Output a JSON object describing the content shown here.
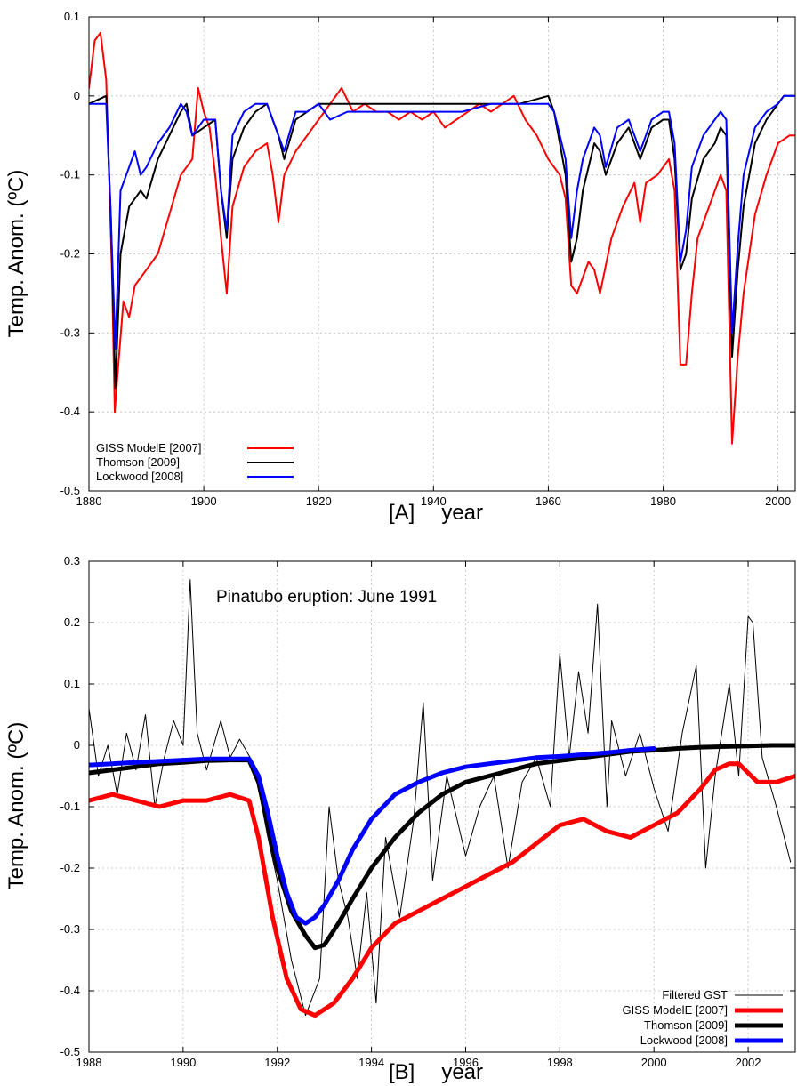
{
  "chart_data": [
    {
      "type": "line",
      "panel_label": "[A]",
      "xlabel": "year",
      "ylabel": "Temp. Anom. (ºC)",
      "xlim": [
        1880,
        2003
      ],
      "ylim": [
        -0.5,
        0.1
      ],
      "xticks": [
        "1880",
        "1900",
        "1920",
        "1940",
        "1960",
        "1980",
        "2000"
      ],
      "yticks": [
        "0.1",
        "0",
        "-0.1",
        "-0.2",
        "-0.3",
        "-0.4",
        "-0.5"
      ],
      "legend_position": "bottom-left",
      "series": [
        {
          "name": "GISS ModelE [2007]",
          "color": "#ff0000",
          "x": [
            1880,
            1881,
            1882,
            1883,
            1884,
            1884.5,
            1885,
            1886,
            1887,
            1888,
            1890,
            1892,
            1894,
            1896,
            1898,
            1899,
            1900,
            1901,
            1902,
            1903,
            1904,
            1905,
            1907,
            1909,
            1911,
            1912,
            1913,
            1914,
            1916,
            1918,
            1920,
            1922,
            1924,
            1926,
            1928,
            1930,
            1932,
            1934,
            1936,
            1938,
            1940,
            1942,
            1944,
            1946,
            1948,
            1950,
            1952,
            1954,
            1956,
            1958,
            1960,
            1962,
            1963,
            1964,
            1965,
            1967,
            1968,
            1969,
            1971,
            1973,
            1975,
            1976,
            1977,
            1979,
            1981,
            1982,
            1983,
            1984,
            1985,
            1986,
            1988,
            1990,
            1991,
            1992,
            1993,
            1994,
            1996,
            1998,
            2000,
            2002,
            2003
          ],
          "y": [
            0.01,
            0.07,
            0.08,
            0.02,
            -0.22,
            -0.4,
            -0.35,
            -0.26,
            -0.28,
            -0.24,
            -0.22,
            -0.2,
            -0.15,
            -0.1,
            -0.08,
            0.01,
            -0.02,
            -0.04,
            -0.1,
            -0.18,
            -0.25,
            -0.14,
            -0.09,
            -0.07,
            -0.06,
            -0.1,
            -0.16,
            -0.1,
            -0.07,
            -0.05,
            -0.03,
            -0.01,
            0.01,
            -0.02,
            -0.01,
            -0.02,
            -0.02,
            -0.03,
            -0.02,
            -0.03,
            -0.02,
            -0.04,
            -0.03,
            -0.02,
            -0.01,
            -0.02,
            -0.01,
            0.0,
            -0.03,
            -0.05,
            -0.08,
            -0.1,
            -0.13,
            -0.24,
            -0.25,
            -0.21,
            -0.22,
            -0.25,
            -0.18,
            -0.14,
            -0.11,
            -0.16,
            -0.11,
            -0.1,
            -0.08,
            -0.12,
            -0.34,
            -0.34,
            -0.25,
            -0.18,
            -0.14,
            -0.1,
            -0.12,
            -0.44,
            -0.33,
            -0.25,
            -0.15,
            -0.1,
            -0.06,
            -0.05,
            -0.05
          ]
        },
        {
          "name": "Thomson [2009]",
          "color": "#000000",
          "x": [
            1880,
            1883,
            1883.8,
            1884.6,
            1885.5,
            1887,
            1889,
            1890,
            1892,
            1894,
            1896,
            1897,
            1898,
            1900,
            1902,
            1903,
            1904,
            1905,
            1907,
            1909,
            1911,
            1913,
            1914,
            1916,
            1918,
            1920,
            1925,
            1930,
            1935,
            1940,
            1945,
            1950,
            1955,
            1960,
            1961,
            1963,
            1964,
            1965,
            1966,
            1968,
            1969,
            1970,
            1972,
            1974,
            1975,
            1976,
            1978,
            1980,
            1981,
            1982,
            1983,
            1984,
            1985,
            1987,
            1989,
            1990,
            1991,
            1992,
            1993,
            1994,
            1996,
            1998,
            2000,
            2001,
            2003
          ],
          "y": [
            -0.01,
            0.0,
            -0.15,
            -0.37,
            -0.2,
            -0.14,
            -0.12,
            -0.13,
            -0.08,
            -0.05,
            -0.02,
            -0.01,
            -0.05,
            -0.04,
            -0.03,
            -0.12,
            -0.18,
            -0.08,
            -0.04,
            -0.02,
            -0.01,
            -0.05,
            -0.08,
            -0.03,
            -0.02,
            -0.01,
            -0.01,
            -0.01,
            -0.01,
            -0.01,
            -0.01,
            -0.01,
            -0.01,
            0.0,
            -0.02,
            -0.1,
            -0.21,
            -0.18,
            -0.12,
            -0.06,
            -0.07,
            -0.1,
            -0.06,
            -0.04,
            -0.06,
            -0.08,
            -0.04,
            -0.03,
            -0.03,
            -0.08,
            -0.22,
            -0.2,
            -0.13,
            -0.08,
            -0.06,
            -0.04,
            -0.05,
            -0.33,
            -0.22,
            -0.14,
            -0.06,
            -0.03,
            -0.01,
            0.0,
            0.0
          ]
        },
        {
          "name": "Lockwood [2008]",
          "color": "#0000ff",
          "x": [
            1880,
            1883,
            1883.8,
            1884.6,
            1885.5,
            1887,
            1888,
            1889,
            1890,
            1892,
            1894,
            1896,
            1897,
            1898,
            1900,
            1902,
            1903,
            1904,
            1905,
            1907,
            1909,
            1911,
            1913,
            1914,
            1916,
            1918,
            1920,
            1922,
            1925,
            1930,
            1935,
            1940,
            1945,
            1950,
            1955,
            1960,
            1961,
            1963,
            1964,
            1965,
            1966,
            1968,
            1969,
            1970,
            1972,
            1974,
            1975,
            1976,
            1978,
            1980,
            1981,
            1982,
            1983,
            1984,
            1985,
            1987,
            1989,
            1990,
            1991,
            1992,
            1993,
            1994,
            1996,
            1998,
            2000,
            2001,
            2003
          ],
          "y": [
            -0.01,
            -0.01,
            -0.15,
            -0.32,
            -0.12,
            -0.09,
            -0.07,
            -0.1,
            -0.09,
            -0.06,
            -0.04,
            -0.01,
            -0.02,
            -0.05,
            -0.03,
            -0.03,
            -0.12,
            -0.17,
            -0.05,
            -0.02,
            -0.01,
            -0.01,
            -0.05,
            -0.07,
            -0.02,
            -0.02,
            -0.01,
            -0.03,
            -0.02,
            -0.02,
            -0.02,
            -0.02,
            -0.02,
            -0.01,
            -0.01,
            -0.01,
            -0.02,
            -0.08,
            -0.18,
            -0.12,
            -0.08,
            -0.04,
            -0.05,
            -0.09,
            -0.04,
            -0.03,
            -0.05,
            -0.07,
            -0.03,
            -0.02,
            -0.02,
            -0.06,
            -0.21,
            -0.17,
            -0.09,
            -0.05,
            -0.03,
            -0.02,
            -0.03,
            -0.3,
            -0.19,
            -0.1,
            -0.04,
            -0.02,
            -0.01,
            0.0,
            0.0
          ]
        }
      ]
    },
    {
      "type": "line",
      "panel_label": "[B]",
      "xlabel": "year",
      "ylabel": "Temp. Anom. (ºC)",
      "annotation": "Pinatubo eruption: June 1991",
      "xlim": [
        1988,
        2003
      ],
      "ylim": [
        -0.5,
        0.3
      ],
      "xticks": [
        "1988",
        "1990",
        "1992",
        "1994",
        "1996",
        "1998",
        "2000",
        "2002"
      ],
      "yticks": [
        "0.3",
        "0.2",
        "0.1",
        "0",
        "-0.1",
        "-0.2",
        "-0.3",
        "-0.4",
        "-0.5"
      ],
      "legend_position": "bottom-right",
      "series": [
        {
          "name": "Filtered GST",
          "color": "#000000",
          "x": [
            1988.0,
            1988.2,
            1988.4,
            1988.6,
            1988.8,
            1989.0,
            1989.2,
            1989.4,
            1989.6,
            1989.8,
            1990.0,
            1990.15,
            1990.3,
            1990.5,
            1990.8,
            1991.0,
            1991.2,
            1991.5,
            1991.8,
            1992.0,
            1992.3,
            1992.6,
            1992.9,
            1993.1,
            1993.3,
            1993.5,
            1993.7,
            1993.9,
            1994.1,
            1994.3,
            1994.6,
            1994.9,
            1995.1,
            1995.3,
            1995.6,
            1996.0,
            1996.3,
            1996.6,
            1996.9,
            1997.2,
            1997.5,
            1997.8,
            1998.0,
            1998.2,
            1998.4,
            1998.6,
            1998.8,
            1999.0,
            1999.1,
            1999.4,
            1999.7,
            2000.0,
            2000.3,
            2000.6,
            2000.9,
            2001.1,
            2001.3,
            2001.6,
            2001.8,
            2002.0,
            2002.1,
            2002.3,
            2002.6,
            2002.9
          ],
          "y": [
            0.06,
            -0.05,
            0.0,
            -0.08,
            0.02,
            -0.04,
            0.05,
            -0.1,
            -0.02,
            0.04,
            0.0,
            0.27,
            0.02,
            -0.04,
            0.04,
            -0.02,
            0.01,
            -0.03,
            -0.15,
            -0.22,
            -0.35,
            -0.44,
            -0.38,
            -0.1,
            -0.22,
            -0.28,
            -0.38,
            -0.24,
            -0.42,
            -0.15,
            -0.28,
            -0.12,
            0.07,
            -0.22,
            -0.05,
            -0.18,
            -0.1,
            -0.05,
            -0.2,
            -0.06,
            -0.02,
            -0.1,
            0.15,
            -0.02,
            0.12,
            0.02,
            0.23,
            -0.1,
            0.04,
            -0.05,
            0.02,
            -0.07,
            -0.14,
            0.02,
            0.13,
            -0.2,
            -0.05,
            0.1,
            -0.05,
            0.21,
            0.2,
            -0.02,
            -0.1,
            -0.19
          ]
        },
        {
          "name": "GISS ModelE [2007]",
          "color": "#ff0000",
          "x": [
            1988.0,
            1988.5,
            1989.0,
            1989.5,
            1990.0,
            1990.5,
            1991.0,
            1991.4,
            1991.6,
            1991.9,
            1992.2,
            1992.5,
            1992.8,
            1993.2,
            1993.6,
            1994.0,
            1994.5,
            1995.0,
            1995.5,
            1996.0,
            1996.5,
            1997.0,
            1997.5,
            1998.0,
            1998.5,
            1999.0,
            1999.5,
            2000.0,
            2000.5,
            2001.0,
            2001.3,
            2001.6,
            2001.8,
            2002.2,
            2002.6,
            2003.0
          ],
          "y": [
            -0.09,
            -0.08,
            -0.09,
            -0.1,
            -0.09,
            -0.09,
            -0.08,
            -0.09,
            -0.15,
            -0.28,
            -0.38,
            -0.43,
            -0.44,
            -0.42,
            -0.38,
            -0.33,
            -0.29,
            -0.27,
            -0.25,
            -0.23,
            -0.21,
            -0.19,
            -0.16,
            -0.13,
            -0.12,
            -0.14,
            -0.15,
            -0.13,
            -0.11,
            -0.07,
            -0.04,
            -0.03,
            -0.03,
            -0.06,
            -0.06,
            -0.05
          ]
        },
        {
          "name": "Thomson [2009]",
          "color": "#000000",
          "x": [
            1988.0,
            1988.5,
            1989.0,
            1989.5,
            1990.0,
            1990.5,
            1991.0,
            1991.4,
            1991.6,
            1991.8,
            1992.0,
            1992.3,
            1992.6,
            1992.8,
            1993.0,
            1993.3,
            1993.6,
            1994.0,
            1994.5,
            1995.0,
            1995.5,
            1996.0,
            1996.5,
            1997.0,
            1997.5,
            1998.0,
            1998.5,
            1999.0,
            1999.5,
            2000.0,
            2000.5,
            2001.0,
            2001.5,
            2002.0,
            2002.5,
            2003.0
          ],
          "y": [
            -0.045,
            -0.04,
            -0.035,
            -0.03,
            -0.028,
            -0.025,
            -0.024,
            -0.024,
            -0.06,
            -0.13,
            -0.2,
            -0.27,
            -0.31,
            -0.33,
            -0.325,
            -0.29,
            -0.25,
            -0.2,
            -0.15,
            -0.11,
            -0.08,
            -0.06,
            -0.05,
            -0.04,
            -0.03,
            -0.025,
            -0.02,
            -0.015,
            -0.01,
            -0.008,
            -0.005,
            -0.003,
            -0.002,
            -0.001,
            0.0,
            0.0
          ]
        },
        {
          "name": "Lockwood [2008]",
          "color": "#0000ff",
          "x": [
            1988.0,
            1988.5,
            1989.0,
            1989.5,
            1990.0,
            1990.5,
            1991.0,
            1991.4,
            1991.6,
            1991.8,
            1992.0,
            1992.2,
            1992.4,
            1992.6,
            1992.8,
            1993.0,
            1993.3,
            1993.6,
            1994.0,
            1994.5,
            1995.0,
            1995.5,
            1996.0,
            1996.5,
            1997.0,
            1997.5,
            1998.0,
            1998.5,
            1999.0,
            1999.5,
            2000.0
          ],
          "y": [
            -0.032,
            -0.03,
            -0.028,
            -0.026,
            -0.024,
            -0.022,
            -0.022,
            -0.022,
            -0.05,
            -0.11,
            -0.18,
            -0.24,
            -0.28,
            -0.29,
            -0.28,
            -0.26,
            -0.22,
            -0.17,
            -0.12,
            -0.08,
            -0.06,
            -0.045,
            -0.035,
            -0.03,
            -0.025,
            -0.02,
            -0.018,
            -0.015,
            -0.012,
            -0.008,
            -0.005
          ]
        }
      ]
    }
  ]
}
